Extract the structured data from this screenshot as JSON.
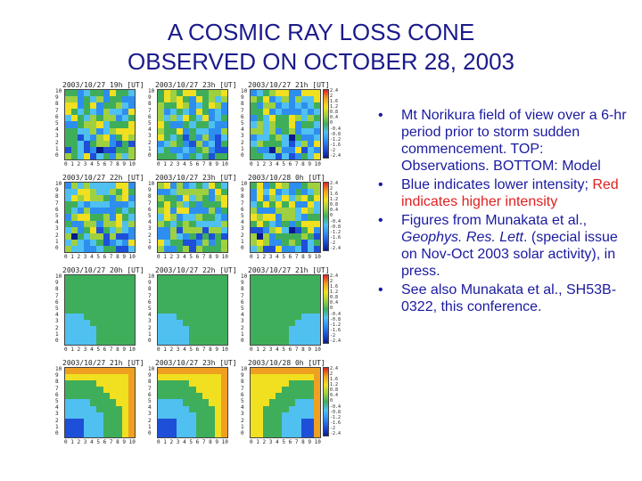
{
  "title": {
    "line1": "A COSMIC RAY LOSS CONE",
    "line2": "OBSERVED ON OCTOBER 28, 2003"
  },
  "colors": {
    "title": "#1a1a8c",
    "bullet_text": "#1a1aa0",
    "highlight": "#e02020"
  },
  "figure": {
    "panel_titles": [
      "2003/10/27 19h [UT]",
      "2003/10/27 23h [UT]",
      "2003/10/27 21h [UT]",
      "2003/10/27 22h [UT]",
      "2003/10/27 23h [UT]",
      "2003/10/28 0h [UT]",
      "2003/10/27 20h [UT]",
      "2003/10/27 22h [UT]",
      "2003/10/27 21h [UT]",
      "2003/10/27 21h [UT]",
      "2003/10/27 23h [UT]",
      "2003/10/28 0h [UT]"
    ],
    "y_ticks": [
      "10",
      "9",
      "8",
      "7",
      "6",
      "5",
      "4",
      "3",
      "2",
      "1",
      "0"
    ],
    "x_ticks": [
      "0",
      "1",
      "2",
      "3",
      "4",
      "5",
      "6",
      "7",
      "8",
      "9",
      "10"
    ],
    "colorbar_ticks": [
      "2.4",
      "2",
      "1.6",
      "1.2",
      "0.8",
      "0.4",
      "0",
      "-0.4",
      "-0.8",
      "-1.2",
      "-1.6",
      "-2",
      "-2.4"
    ]
  },
  "bullets": [
    {
      "text": "Mt Norikura field of view over a 6-hr period prior to storm sudden commencement. TOP: Observations. BOTTOM: Model"
    },
    {
      "text_before": "Blue indicates lower intensity; ",
      "text_red": "Red indicates higher intensity"
    },
    {
      "text_before": "Figures from Munakata et al., ",
      "text_italic": "Geophys. Res. Lett",
      "text_after": ". (special issue on Nov-Oct 2003 solar activity), in press."
    },
    {
      "text": "See also Munakata et al., SH53B-0322, this conference."
    }
  ]
}
